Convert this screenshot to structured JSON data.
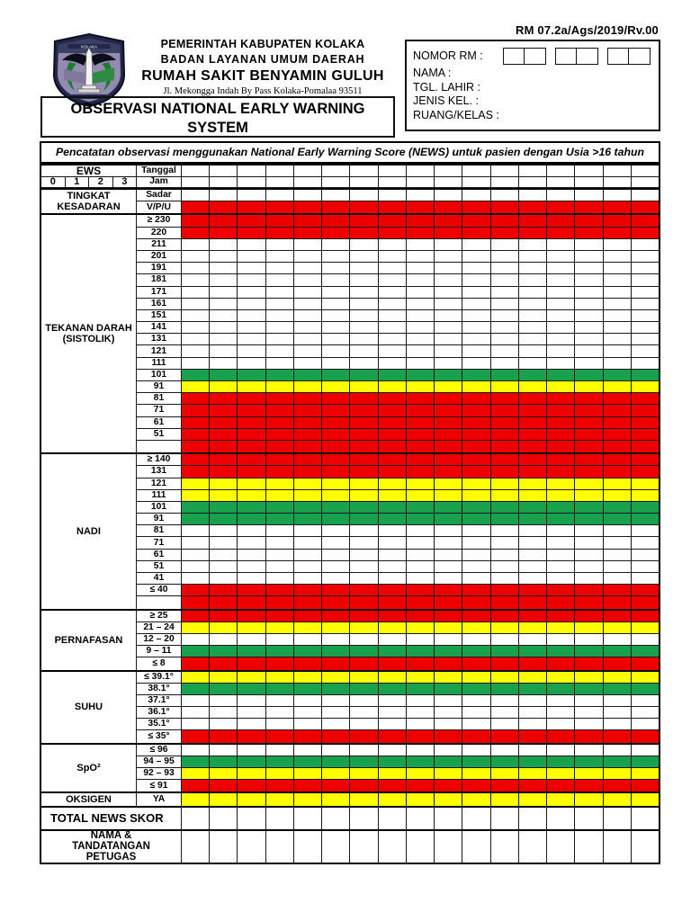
{
  "header": {
    "form_code": "RM 07.2a/Ags/2019/Rv.00",
    "agency_line1": "PEMERINTAH KABUPATEN KOLAKA",
    "agency_line2": "BADAN LAYANAN UMUM DAERAH",
    "hospital_name": "RUMAH SAKIT BENYAMIN GULUH",
    "address": "Jl. Mekongga Indah By Pass Kolaka-Pomalaa 93511",
    "title": "OBSERVASI NATIONAL EARLY WARNING SYSTEM"
  },
  "patient_box": {
    "nomor_rm_label": "NOMOR RM :",
    "fields": [
      "NAMA :",
      "TGL. LAHIR :",
      "JENIS KEL. :",
      "RUANG/KELAS :"
    ]
  },
  "note": "Pencatatan observasi menggunakan National Early Warning Score (NEWS) untuk pasien dengan Usia >16 tahun",
  "colors": {
    "white": "#ffffff",
    "red": "#ee0000",
    "yellow": "#ffff00",
    "green": "#18a24d"
  },
  "table": {
    "ews_label": "EWS",
    "ews_scores": [
      "0",
      "1",
      "2",
      "3"
    ],
    "date_label": "Tanggal",
    "time_label": "Jam",
    "data_columns": 17,
    "sections": [
      {
        "id": "tingkat-kesadaran",
        "label": "TINGKAT KESADARAN",
        "rows": [
          {
            "value": "Sadar",
            "color": "white"
          },
          {
            "value": "V/P/U",
            "color": "red"
          }
        ]
      },
      {
        "id": "tekanan-darah-sistolik",
        "label": "TEKANAN DARAH (SISTOLIK)",
        "rows": [
          {
            "value": "≥ 230",
            "color": "red"
          },
          {
            "value": "220",
            "color": "red"
          },
          {
            "value": "211",
            "color": "white"
          },
          {
            "value": "201",
            "color": "white"
          },
          {
            "value": "191",
            "color": "white"
          },
          {
            "value": "181",
            "color": "white"
          },
          {
            "value": "171",
            "color": "white"
          },
          {
            "value": "161",
            "color": "white"
          },
          {
            "value": "151",
            "color": "white"
          },
          {
            "value": "141",
            "color": "white"
          },
          {
            "value": "131",
            "color": "white"
          },
          {
            "value": "121",
            "color": "white"
          },
          {
            "value": "111",
            "color": "white"
          },
          {
            "value": "101",
            "color": "green"
          },
          {
            "value": "91",
            "color": "yellow"
          },
          {
            "value": "81",
            "color": "red"
          },
          {
            "value": "71",
            "color": "red"
          },
          {
            "value": "61",
            "color": "red"
          },
          {
            "value": "51",
            "color": "red"
          },
          {
            "value": "",
            "color": "red"
          }
        ]
      },
      {
        "id": "nadi",
        "label": "NADI",
        "rows": [
          {
            "value": "≥ 140",
            "color": "red"
          },
          {
            "value": "131",
            "color": "red"
          },
          {
            "value": "121",
            "color": "yellow"
          },
          {
            "value": "111",
            "color": "yellow"
          },
          {
            "value": "101",
            "color": "green"
          },
          {
            "value": "91",
            "color": "green"
          },
          {
            "value": "81",
            "color": "white"
          },
          {
            "value": "71",
            "color": "white"
          },
          {
            "value": "61",
            "color": "white"
          },
          {
            "value": "51",
            "color": "white"
          },
          {
            "value": "41",
            "color": "white"
          },
          {
            "value": "≤ 40",
            "color": "red"
          },
          {
            "value": "",
            "color": "red"
          }
        ]
      },
      {
        "id": "pernafasan",
        "label": "PERNAFASAN",
        "rows": [
          {
            "value": "≥ 25",
            "color": "red"
          },
          {
            "value": "21 – 24",
            "color": "yellow"
          },
          {
            "value": "12 – 20",
            "color": "white"
          },
          {
            "value": "9 – 11",
            "color": "green"
          },
          {
            "value": "≤ 8",
            "color": "red"
          }
        ]
      },
      {
        "id": "suhu",
        "label": "SUHU",
        "rows": [
          {
            "value": "≤ 39.1°",
            "color": "yellow"
          },
          {
            "value": "38.1°",
            "color": "green"
          },
          {
            "value": "37.1°",
            "color": "white"
          },
          {
            "value": "36.1°",
            "color": "white"
          },
          {
            "value": "35.1°",
            "color": "white"
          },
          {
            "value": "≤ 35°",
            "color": "red"
          }
        ]
      },
      {
        "id": "spo2",
        "label": "SpO²",
        "rows": [
          {
            "value": "≤ 96",
            "color": "white"
          },
          {
            "value": "94 – 95",
            "color": "green"
          },
          {
            "value": "92 – 93",
            "color": "yellow"
          },
          {
            "value": "≤ 91",
            "color": "red"
          }
        ]
      },
      {
        "id": "oksigen",
        "label": "OKSIGEN",
        "rows": [
          {
            "value": "YA",
            "color": "yellow"
          }
        ]
      }
    ],
    "footer_rows": [
      {
        "id": "total-news-skor",
        "label": "TOTAL NEWS SKOR"
      },
      {
        "id": "nama-tandatangan-petugas",
        "label": "NAMA & TANDATANGAN PETUGAS"
      }
    ]
  }
}
